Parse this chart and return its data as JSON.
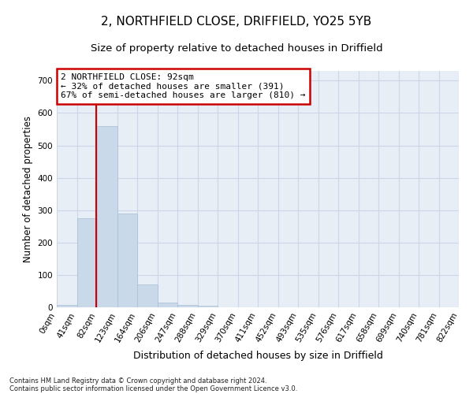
{
  "title1": "2, NORTHFIELD CLOSE, DRIFFIELD, YO25 5YB",
  "title2": "Size of property relative to detached houses in Driffield",
  "xlabel": "Distribution of detached houses by size in Driffield",
  "ylabel": "Number of detached properties",
  "footnote1": "Contains HM Land Registry data © Crown copyright and database right 2024.",
  "footnote2": "Contains public sector information licensed under the Open Government Licence v3.0.",
  "annotation_line1": "2 NORTHFIELD CLOSE: 92sqm",
  "annotation_line2": "← 32% of detached houses are smaller (391)",
  "annotation_line3": "67% of semi-detached houses are larger (810) →",
  "bar_values": [
    8,
    275,
    560,
    290,
    70,
    15,
    8,
    5,
    0,
    0,
    0,
    0,
    0,
    0,
    0,
    0,
    0,
    0,
    0,
    0
  ],
  "bin_labels": [
    "0sqm",
    "41sqm",
    "82sqm",
    "123sqm",
    "164sqm",
    "206sqm",
    "247sqm",
    "288sqm",
    "329sqm",
    "370sqm",
    "411sqm",
    "452sqm",
    "493sqm",
    "535sqm",
    "576sqm",
    "617sqm",
    "658sqm",
    "699sqm",
    "740sqm",
    "781sqm",
    "822sqm"
  ],
  "bar_color": "#c9d9ea",
  "bar_edgecolor": "#a8bed4",
  "redline_x": 1.95,
  "ylim": [
    0,
    730
  ],
  "yticks": [
    0,
    100,
    200,
    300,
    400,
    500,
    600,
    700
  ],
  "grid_color": "#ccd6e8",
  "bg_color": "#e8eef6",
  "annotation_box_color": "#ffffff",
  "annotation_border_color": "#cc0000",
  "redline_color": "#cc0000",
  "title1_fontsize": 11,
  "title2_fontsize": 9.5,
  "xlabel_fontsize": 9,
  "ylabel_fontsize": 8.5,
  "tick_fontsize": 7.5,
  "annotation_fontsize": 8,
  "footnote_fontsize": 6
}
